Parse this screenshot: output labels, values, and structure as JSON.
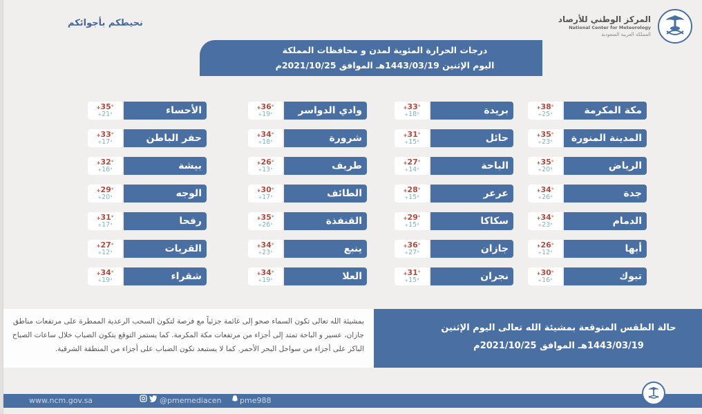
{
  "header": {
    "logo_ar": "المركز الوطني للأرصاد",
    "logo_en": "National Center for Meteorology",
    "logo_sub": "المملكة العربية السعودية",
    "slogan": "نحيطكم بأجوائكم",
    "title_line1": "درجات الحرارة المئوية لمدن و محافظات المملكة",
    "title_line2": "اليوم الإثنين 1443/03/19هـ الموافق  2021/10/25م"
  },
  "colors": {
    "accent_blue": "#4a6fa3",
    "max_temp": "#b34a3e",
    "min_temp": "#78b4cc",
    "background": "#f0efed"
  },
  "cities": {
    "col1": [
      {
        "name": "مكة المكرمة",
        "max": "38",
        "min": "25"
      },
      {
        "name": "المدينة المنورة",
        "max": "35",
        "min": "23"
      },
      {
        "name": "الرياض",
        "max": "35",
        "min": "20"
      },
      {
        "name": "جدة",
        "max": "34",
        "min": "26"
      },
      {
        "name": "الدمام",
        "max": "34",
        "min": "23"
      },
      {
        "name": "أبها",
        "max": "26",
        "min": "12"
      },
      {
        "name": "تبوك",
        "max": "30",
        "min": "16"
      }
    ],
    "col2": [
      {
        "name": "بريدة",
        "max": "33",
        "min": "18"
      },
      {
        "name": "حائل",
        "max": "31",
        "min": "15"
      },
      {
        "name": "الباحة",
        "max": "27",
        "min": "14"
      },
      {
        "name": "عرعر",
        "max": "28",
        "min": "15"
      },
      {
        "name": "سكاكا",
        "max": "29",
        "min": "15"
      },
      {
        "name": "جازان",
        "max": "36",
        "min": "27"
      },
      {
        "name": "نجران",
        "max": "31",
        "min": "15"
      }
    ],
    "col3": [
      {
        "name": "وادي الدواسر",
        "max": "36",
        "min": "19"
      },
      {
        "name": "شرورة",
        "max": "34",
        "min": "18"
      },
      {
        "name": "طريف",
        "max": "26",
        "min": "13"
      },
      {
        "name": "الطائف",
        "max": "30",
        "min": "17"
      },
      {
        "name": "القنفذة",
        "max": "35",
        "min": "26"
      },
      {
        "name": "ينبع",
        "max": "34",
        "min": "23"
      },
      {
        "name": "العلا",
        "max": "34",
        "min": "19"
      }
    ],
    "col4": [
      {
        "name": "الأحساء",
        "max": "35",
        "min": "21"
      },
      {
        "name": "حفر الباطن",
        "max": "33",
        "min": "17"
      },
      {
        "name": "بيشة",
        "max": "32",
        "min": "16"
      },
      {
        "name": "الوجه",
        "max": "29",
        "min": "20"
      },
      {
        "name": "رفحا",
        "max": "31",
        "min": "17"
      },
      {
        "name": "القريات",
        "max": "27",
        "min": "12"
      },
      {
        "name": "شقراء",
        "max": "34",
        "min": "19"
      }
    ]
  },
  "units": {
    "degree": "°",
    "marker": "+"
  },
  "forecast": {
    "title_line1": "حالة الطقس المتوقعة بمشيئة الله تعالى اليوم الإثنين",
    "title_line2": "1443/03/19هـ  الموافق  2021/10/25م",
    "description": "بمشيئة الله تعالى تكون السماء صحو إلى غائمة جزئياً مع فرصة لتكون السحب الرعدية الممطرة على مرتفعات مناطق جازان، عسير و الباحة تمتد إلى أجزاء من مرتفعات مكة المكرمة.  كما يستمر التوقع بتكون الضباب خلال ساعات الصباح الباكر على أجزاء من سواحل البحر الأحمر. كما لا يستبعد تكون الضباب على أجزاء من المنطقة الشرقية."
  },
  "footer": {
    "website": "www.ncm.gov.sa",
    "social_handle": "@pmemediacen",
    "snapchat_handle": "pme988",
    "icons": [
      "instagram-icon",
      "twitter-icon",
      "snapchat-icon"
    ]
  }
}
